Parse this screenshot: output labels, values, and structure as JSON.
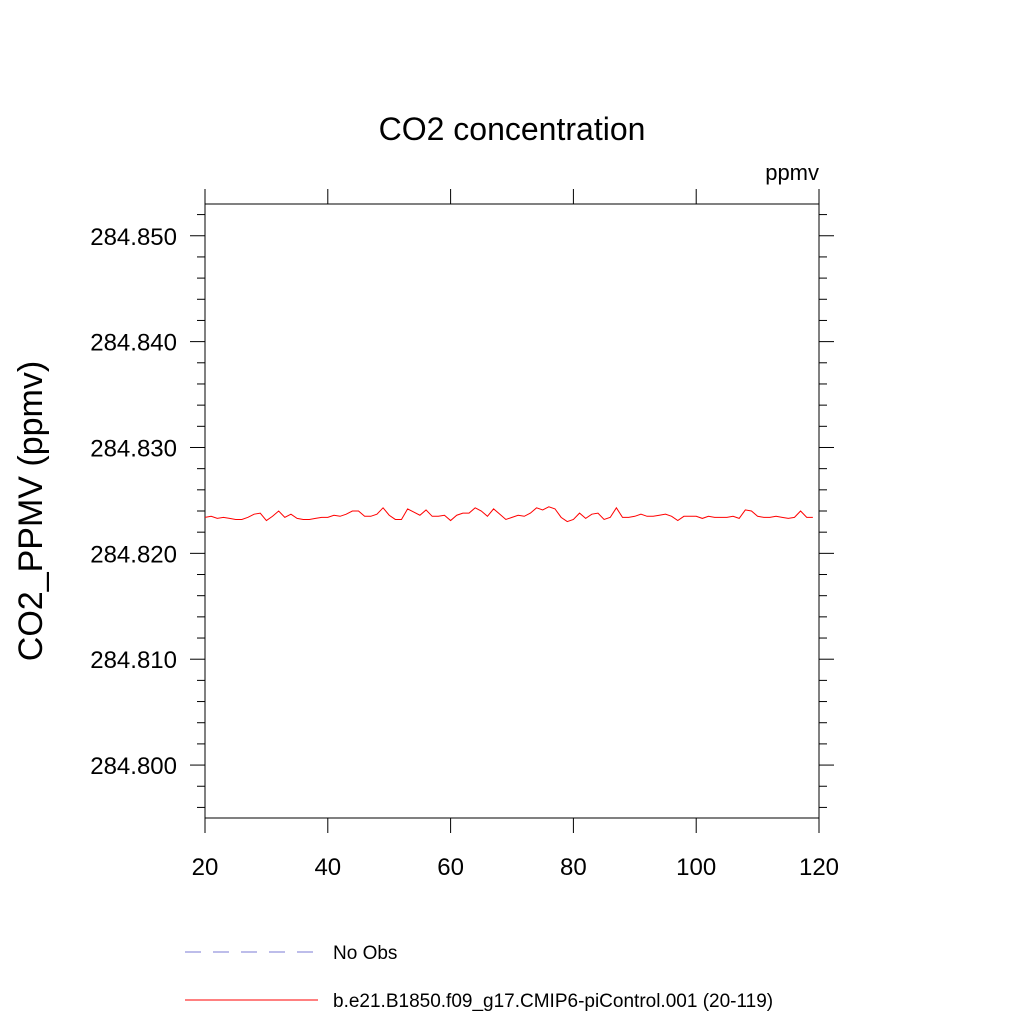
{
  "chart_data": {
    "type": "line",
    "title": "CO2 concentration",
    "units_label": "ppmv",
    "ylabel": "CO2_PPMV  (ppmv)",
    "xlabel": "",
    "xlim": [
      20,
      120
    ],
    "ylim": [
      284.795,
      284.853
    ],
    "x_ticks": [
      20,
      40,
      60,
      80,
      100,
      120
    ],
    "x_tick_labels": [
      "20",
      "40",
      "60",
      "80",
      "100",
      "120"
    ],
    "y_ticks": [
      284.8,
      284.81,
      284.82,
      284.83,
      284.84,
      284.85
    ],
    "y_tick_labels": [
      "284.800",
      "284.810",
      "284.820",
      "284.830",
      "284.840",
      "284.850"
    ],
    "series": [
      {
        "name": "No Obs",
        "color": "#7b7bd6",
        "dash": "dashed",
        "x": [],
        "values": []
      },
      {
        "name": "b.e21.B1850.f09_g17.CMIP6-piControl.001 (20-119)",
        "color": "#ff0000",
        "dash": "solid",
        "x": [
          20,
          21,
          22,
          23,
          24,
          25,
          26,
          27,
          28,
          29,
          30,
          31,
          32,
          33,
          34,
          35,
          36,
          37,
          38,
          39,
          40,
          41,
          42,
          43,
          44,
          45,
          46,
          47,
          48,
          49,
          50,
          51,
          52,
          53,
          54,
          55,
          56,
          57,
          58,
          59,
          60,
          61,
          62,
          63,
          64,
          65,
          66,
          67,
          68,
          69,
          70,
          71,
          72,
          73,
          74,
          75,
          76,
          77,
          78,
          79,
          80,
          81,
          82,
          83,
          84,
          85,
          86,
          87,
          88,
          89,
          90,
          91,
          92,
          93,
          94,
          95,
          96,
          97,
          98,
          99,
          100,
          101,
          102,
          103,
          104,
          105,
          106,
          107,
          108,
          109,
          110,
          111,
          112,
          113,
          114,
          115,
          116,
          117,
          118,
          119
        ],
        "values": [
          284.8234,
          284.8235,
          284.8233,
          284.8234,
          284.8233,
          284.8232,
          284.8232,
          284.8234,
          284.8237,
          284.8238,
          284.8231,
          284.8235,
          284.824,
          284.8234,
          284.8237,
          284.8233,
          284.8232,
          284.8232,
          284.8233,
          284.8234,
          284.8234,
          284.8236,
          284.8235,
          284.8237,
          284.824,
          284.824,
          284.8235,
          284.8235,
          284.8237,
          284.8243,
          284.8236,
          284.8232,
          284.8232,
          284.8242,
          284.8239,
          284.8236,
          284.8241,
          284.8235,
          284.8235,
          284.8236,
          284.8231,
          284.8236,
          284.8238,
          284.8238,
          284.8243,
          284.824,
          284.8235,
          284.8242,
          284.8237,
          284.8232,
          284.8234,
          284.8236,
          284.8235,
          284.8238,
          284.8243,
          284.8241,
          284.8244,
          284.8242,
          284.8234,
          284.823,
          284.8232,
          284.8238,
          284.8233,
          284.8237,
          284.8238,
          284.8232,
          284.8234,
          284.8243,
          284.8234,
          284.8234,
          284.8235,
          284.8237,
          284.8235,
          284.8235,
          284.8236,
          284.8237,
          284.8235,
          284.8231,
          284.8235,
          284.8235,
          284.8235,
          284.8233,
          284.8235,
          284.8234,
          284.8234,
          284.8234,
          284.8235,
          284.8233,
          284.8241,
          284.824,
          284.8235,
          284.8234,
          284.8234,
          284.8235,
          284.8234,
          284.8233,
          284.8234,
          284.824,
          284.8234,
          284.8234
        ]
      }
    ],
    "legend_position": "bottom"
  }
}
